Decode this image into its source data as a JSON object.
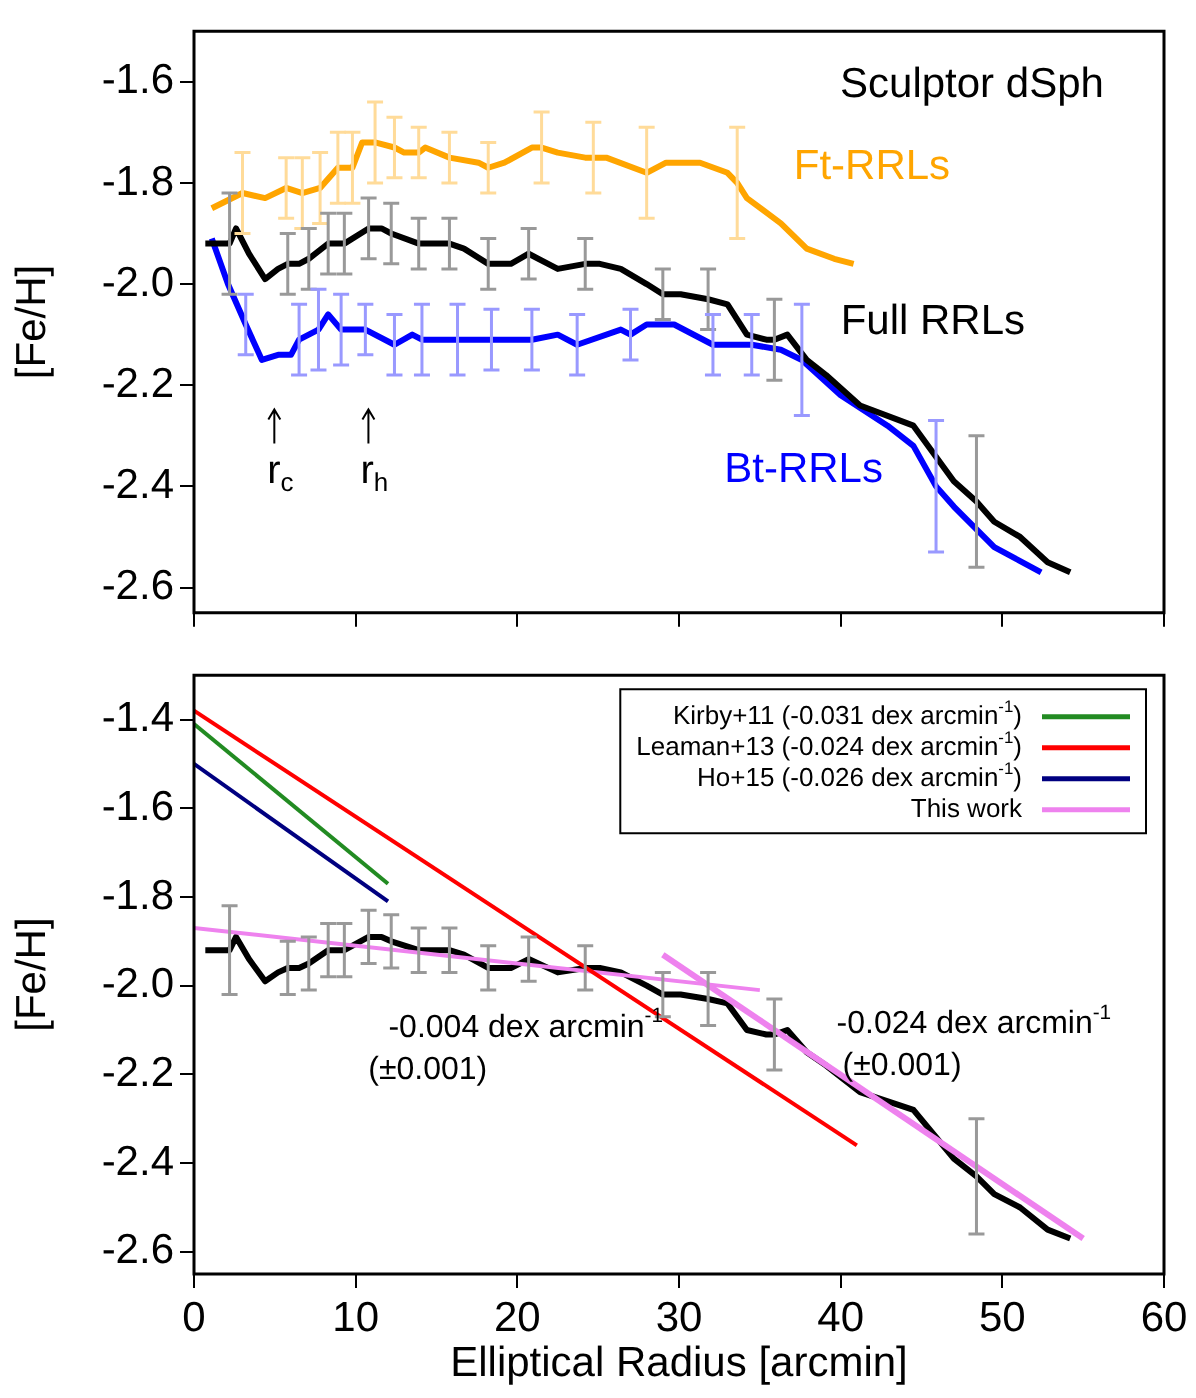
{
  "chart_data": [
    {
      "type": "line",
      "ylabel": "[Fe/H]",
      "xlim": [
        0,
        60
      ],
      "xticks": [
        0,
        10,
        20,
        30,
        40,
        50,
        60
      ],
      "ylim": [
        -2.65,
        -1.5
      ],
      "yticks": [
        -2.6,
        -2.4,
        -2.2,
        {
          "value": -2,
          "label": "-2.0"
        },
        -1.8,
        -1.6
      ],
      "tick_labels": "y",
      "marker": "none",
      "legend": false,
      "annotations": [
        "Sculptor dSph",
        "r$_{c}$",
        "r$_{h}$"
      ],
      "series": [
        {
          "name": "Ft-RRLs",
          "color": "#ffa500",
          "x": [
            1.1,
            3.0,
            4.4,
            5.7,
            6.7,
            7.8,
            8.9,
            9.8,
            10.4,
            11.2,
            12.4,
            13.0,
            13.9,
            14.3,
            15.8,
            17.6,
            18.2,
            19.2,
            20.9,
            21.5,
            22.5,
            24.2,
            24.7,
            25.5,
            28.0,
            29.2,
            31.3,
            33.0,
            33.6,
            34.2,
            36.3,
            37.9,
            39.6,
            40.8
          ],
          "values": [
            -1.85,
            -1.82,
            -1.83,
            -1.81,
            -1.82,
            -1.81,
            -1.77,
            -1.77,
            -1.72,
            -1.72,
            -1.73,
            -1.74,
            -1.74,
            -1.73,
            -1.75,
            -1.76,
            -1.77,
            -1.76,
            -1.73,
            -1.73,
            -1.74,
            -1.75,
            -1.75,
            -1.75,
            -1.78,
            -1.76,
            -1.76,
            -1.78,
            -1.8,
            -1.83,
            -1.88,
            -1.93,
            -1.95,
            -1.96
          ],
          "errors": [
            null,
            0.08,
            null,
            0.06,
            0.07,
            0.07,
            0.07,
            0.07,
            null,
            0.08,
            0.06,
            null,
            0.05,
            null,
            0.05,
            null,
            0.05,
            null,
            null,
            0.07,
            null,
            null,
            0.07,
            null,
            0.09,
            null,
            null,
            null,
            0.11,
            null,
            null,
            null,
            null,
            null
          ]
        },
        {
          "name": "Full RRLs",
          "color": "#000000",
          "x": [
            0.7,
            2.2,
            2.6,
            3.4,
            4.4,
            5.2,
            5.8,
            6.5,
            7.1,
            8.3,
            9.3,
            10.8,
            11.6,
            12.2,
            13.9,
            15.8,
            16.7,
            18.2,
            19.6,
            20.7,
            22.5,
            24.2,
            25.1,
            26.4,
            28.0,
            29.0,
            30.1,
            31.8,
            33.0,
            34.2,
            35.4,
            35.9,
            36.7,
            37.9,
            39.1,
            41.2,
            44.5,
            47.0,
            48.4,
            49.5,
            51.1,
            52.8,
            54.2
          ],
          "values": [
            -1.92,
            -1.92,
            -1.89,
            -1.94,
            -1.99,
            -1.97,
            -1.96,
            -1.96,
            -1.95,
            -1.92,
            -1.92,
            -1.89,
            -1.89,
            -1.9,
            -1.92,
            -1.92,
            -1.93,
            -1.96,
            -1.96,
            -1.94,
            -1.97,
            -1.96,
            -1.96,
            -1.97,
            -2.0,
            -2.02,
            -2.02,
            -2.03,
            -2.04,
            -2.1,
            -2.11,
            -2.11,
            -2.1,
            -2.15,
            -2.18,
            -2.24,
            -2.28,
            -2.39,
            -2.43,
            -2.47,
            -2.5,
            -2.55,
            -2.57
          ],
          "errors": [
            null,
            0.1,
            null,
            null,
            null,
            null,
            0.06,
            null,
            0.06,
            0.06,
            0.06,
            0.06,
            null,
            0.06,
            0.05,
            0.05,
            null,
            0.05,
            null,
            0.05,
            null,
            0.05,
            null,
            null,
            null,
            0.05,
            null,
            0.06,
            null,
            null,
            null,
            0.08,
            null,
            null,
            null,
            null,
            null,
            null,
            0.13,
            null,
            null,
            null,
            null
          ]
        },
        {
          "name": "Bt-RRLs",
          "color": "#0000ff",
          "x": [
            1.1,
            2.1,
            3.2,
            4.2,
            5.2,
            6.0,
            6.5,
            7.7,
            8.3,
            9.1,
            10.6,
            12.4,
            13.5,
            14.1,
            16.3,
            18.4,
            20.9,
            22.5,
            23.7,
            26.4,
            27.0,
            28.0,
            29.7,
            32.1,
            34.5,
            36.3,
            37.6,
            40.0,
            42.9,
            44.5,
            45.9,
            47.0,
            49.5,
            52.4
          ],
          "values": [
            -1.91,
            -2.0,
            -2.08,
            -2.15,
            -2.14,
            -2.14,
            -2.11,
            -2.09,
            -2.06,
            -2.09,
            -2.09,
            -2.12,
            -2.1,
            -2.11,
            -2.11,
            -2.11,
            -2.11,
            -2.1,
            -2.12,
            -2.09,
            -2.1,
            -2.08,
            -2.08,
            -2.12,
            -2.12,
            -2.13,
            -2.15,
            -2.22,
            -2.28,
            -2.32,
            -2.4,
            -2.44,
            -2.52,
            -2.57
          ],
          "errors": [
            null,
            null,
            0.06,
            null,
            null,
            null,
            0.07,
            0.08,
            null,
            0.07,
            0.05,
            0.06,
            null,
            0.07,
            0.07,
            0.06,
            0.06,
            null,
            0.06,
            null,
            0.05,
            null,
            null,
            0.06,
            0.06,
            null,
            0.11,
            null,
            null,
            null,
            0.13,
            null,
            null,
            null
          ]
        }
      ]
    },
    {
      "type": "line",
      "ylabel": "[Fe/H]",
      "xlabel": "Elliptical Radius [arcmin]",
      "xlim": [
        0,
        60
      ],
      "xticks": [
        0,
        10,
        20,
        30,
        40,
        50,
        60
      ],
      "ylim": [
        -2.65,
        -1.3
      ],
      "yticks": [
        -2.6,
        -2.4,
        -2.2,
        {
          "value": -2,
          "label": "-2.0"
        },
        -1.8,
        -1.6,
        -1.4
      ],
      "marker": "none",
      "legend": "top right",
      "annotations": [
        "-0.004 dex arcmin$^{-1}$",
        "(±0.001)",
        "-0.024 dex arcmin$^{-1}$",
        "(±0.001)"
      ],
      "series": [
        {
          "name": "Kirby+11 (-0.031 dex arcmin$^{-1}$)",
          "color": "#228b22",
          "x": [
            0,
            12
          ],
          "values": [
            -1.41,
            -1.77
          ]
        },
        {
          "name": "Leaman+13 (-0.024 dex arcmin$^{-1}$)",
          "color": "#ff0000",
          "x": [
            0,
            41
          ],
          "values": [
            -1.38,
            -2.36
          ]
        },
        {
          "name": "Ho+15 (-0.026 dex arcmin$^{-1}$)",
          "color": "#000080",
          "x": [
            0,
            12
          ],
          "values": [
            -1.5,
            -1.81
          ]
        },
        {
          "name": "This work",
          "color": "#ee82ee",
          "x": [
            0,
            35
          ],
          "values": [
            -1.87,
            -2.01
          ]
        },
        {
          "color": "#ee82ee",
          "x": [
            29,
            55
          ],
          "values": [
            -1.93,
            -2.57
          ]
        },
        {
          "color": "#000000",
          "x": [
            0.7,
            2.2,
            2.6,
            3.4,
            4.4,
            5.2,
            5.8,
            6.5,
            7.1,
            8.3,
            9.3,
            10.8,
            11.6,
            12.2,
            13.9,
            15.8,
            16.7,
            18.2,
            19.6,
            20.7,
            22.5,
            24.2,
            25.1,
            26.4,
            28.0,
            29.0,
            30.1,
            31.8,
            33.0,
            34.2,
            35.4,
            35.9,
            36.7,
            37.9,
            39.1,
            41.2,
            44.5,
            47.0,
            48.4,
            49.5,
            51.1,
            52.8,
            54.2
          ],
          "values": [
            -1.92,
            -1.92,
            -1.89,
            -1.94,
            -1.99,
            -1.97,
            -1.96,
            -1.96,
            -1.95,
            -1.92,
            -1.92,
            -1.89,
            -1.89,
            -1.9,
            -1.92,
            -1.92,
            -1.93,
            -1.96,
            -1.96,
            -1.94,
            -1.97,
            -1.96,
            -1.96,
            -1.97,
            -2.0,
            -2.02,
            -2.02,
            -2.03,
            -2.04,
            -2.1,
            -2.11,
            -2.11,
            -2.1,
            -2.15,
            -2.18,
            -2.24,
            -2.28,
            -2.39,
            -2.43,
            -2.47,
            -2.5,
            -2.55,
            -2.57
          ],
          "errors": [
            null,
            0.1,
            null,
            null,
            null,
            null,
            0.06,
            null,
            0.06,
            0.06,
            0.06,
            0.06,
            null,
            0.06,
            0.05,
            0.05,
            null,
            0.05,
            null,
            0.05,
            null,
            0.05,
            null,
            null,
            null,
            0.05,
            null,
            0.06,
            null,
            null,
            null,
            0.08,
            null,
            null,
            null,
            null,
            null,
            null,
            0.13,
            null,
            null,
            null,
            null
          ]
        }
      ]
    }
  ]
}
